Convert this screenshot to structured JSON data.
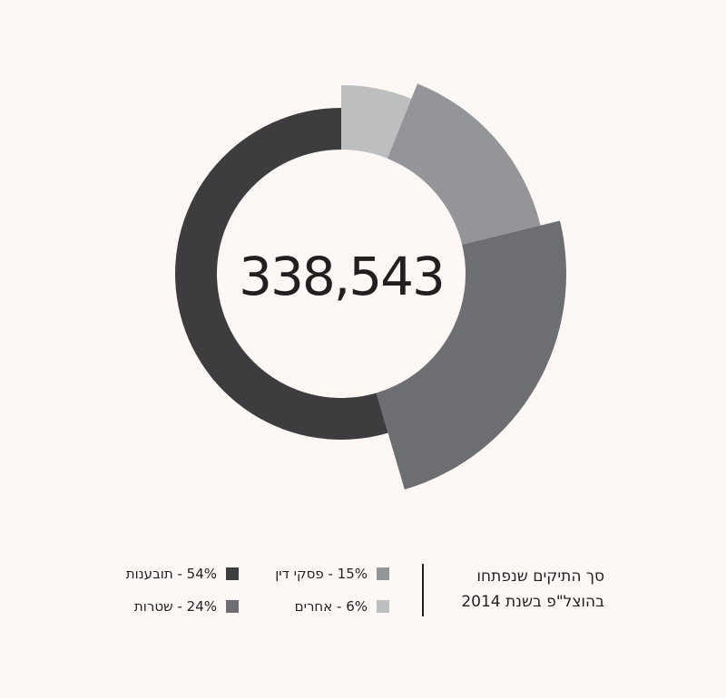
{
  "chart_data": {
    "type": "pie",
    "style": "donut",
    "center_label": "338,543",
    "slices": [
      {
        "label": "תובענות",
        "value": 54,
        "value_label": "54%",
        "color": "#3d3d3f",
        "name": "slice-tovanot"
      },
      {
        "label": "שטרות",
        "value": 24,
        "value_label": "24%",
        "color": "#6d6e71",
        "name": "slice-shtarot"
      },
      {
        "label": "פסקי דין",
        "value": 15,
        "value_label": "15%",
        "color": "#939598",
        "name": "slice-piskei-din"
      },
      {
        "label": "אחרים",
        "value": 6,
        "value_label": "6%",
        "color": "#bcbec0",
        "name": "slice-acherim"
      }
    ],
    "legend": {
      "title_line1": "סך התיקים שנפתחו",
      "title_line2": "בהוצל\"פ בשנת 2014",
      "placement": "bottom"
    }
  }
}
